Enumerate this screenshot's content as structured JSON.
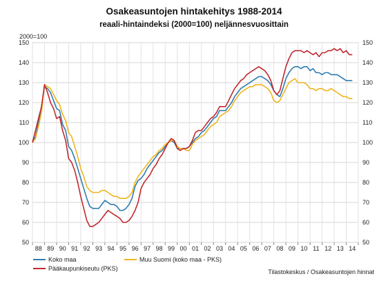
{
  "chart_data": {
    "type": "line",
    "title": "Osakeasuntojen hintakehitys 1988-2014",
    "subtitle": "reaali-hintaindeksi (2000=100) neljännesvuosittain",
    "ylabel": "2000=100",
    "source": "Tilastokeskus / Osakeasuntojen hinnat",
    "ylim": [
      50,
      150
    ],
    "y_ticks": [
      50,
      60,
      70,
      80,
      90,
      100,
      110,
      120,
      130,
      140,
      150
    ],
    "x_range": [
      1988.0,
      2015.0
    ],
    "x_tick_labels": [
      "88",
      "89",
      "90",
      "91",
      "92",
      "93",
      "94",
      "95",
      "96",
      "97",
      "98",
      "99",
      "00",
      "01",
      "02",
      "03",
      "04",
      "05",
      "06",
      "07",
      "08",
      "09",
      "10",
      "11",
      "12",
      "13",
      "14"
    ],
    "grid": true,
    "legend_position": "bottom",
    "series": [
      {
        "name": "Koko maa",
        "color": "#2e7bb0",
        "x": [
          1988.0,
          1988.25,
          1988.5,
          1988.75,
          1989.0,
          1989.25,
          1989.5,
          1989.75,
          1990.0,
          1990.25,
          1990.5,
          1990.75,
          1991.0,
          1991.25,
          1991.5,
          1991.75,
          1992.0,
          1992.25,
          1992.5,
          1992.75,
          1993.0,
          1993.25,
          1993.5,
          1993.75,
          1994.0,
          1994.25,
          1994.5,
          1994.75,
          1995.0,
          1995.25,
          1995.5,
          1995.75,
          1996.0,
          1996.25,
          1996.5,
          1996.75,
          1997.0,
          1997.25,
          1997.5,
          1997.75,
          1998.0,
          1998.25,
          1998.5,
          1998.75,
          1999.0,
          1999.25,
          1999.5,
          1999.75,
          2000.0,
          2000.25,
          2000.5,
          2000.75,
          2001.0,
          2001.25,
          2001.5,
          2001.75,
          2002.0,
          2002.25,
          2002.5,
          2002.75,
          2003.0,
          2003.25,
          2003.5,
          2003.75,
          2004.0,
          2004.25,
          2004.5,
          2004.75,
          2005.0,
          2005.25,
          2005.5,
          2005.75,
          2006.0,
          2006.25,
          2006.5,
          2006.75,
          2007.0,
          2007.25,
          2007.5,
          2007.75,
          2008.0,
          2008.25,
          2008.5,
          2008.75,
          2009.0,
          2009.25,
          2009.5,
          2009.75,
          2010.0,
          2010.25,
          2010.5,
          2010.75,
          2011.0,
          2011.25,
          2011.5,
          2011.75,
          2012.0,
          2012.25,
          2012.5,
          2012.75,
          2013.0,
          2013.25,
          2013.5,
          2013.75,
          2014.0,
          2014.25,
          2014.5
        ],
        "y": [
          100,
          103,
          110,
          118,
          128,
          127,
          125,
          121,
          117,
          116,
          109,
          106,
          98,
          96,
          92,
          87,
          82,
          77,
          72,
          68,
          67,
          67,
          67,
          69,
          71,
          70,
          69,
          69,
          68,
          66,
          66,
          67,
          69,
          72,
          78,
          81,
          82,
          84,
          87,
          89,
          91,
          93,
          95,
          96,
          98,
          100,
          101,
          100,
          97,
          97,
          97,
          97,
          98,
          100,
          102,
          103,
          105,
          106,
          108,
          110,
          112,
          113,
          116,
          116,
          116,
          118,
          120,
          123,
          125,
          127,
          128,
          129,
          130,
          131,
          132,
          133,
          133,
          132,
          131,
          129,
          126,
          124,
          123,
          127,
          132,
          135,
          137,
          138,
          138,
          137,
          138,
          138,
          136,
          137,
          135,
          135,
          134,
          135,
          135,
          134,
          134,
          134,
          133,
          132,
          131,
          131,
          131
        ]
      },
      {
        "name": "Pääkaupunkiseutu (PKS)",
        "color": "#c0282e",
        "x": [
          1988.0,
          1988.25,
          1988.5,
          1988.75,
          1989.0,
          1989.25,
          1989.5,
          1989.75,
          1990.0,
          1990.25,
          1990.5,
          1990.75,
          1991.0,
          1991.25,
          1991.5,
          1991.75,
          1992.0,
          1992.25,
          1992.5,
          1992.75,
          1993.0,
          1993.25,
          1993.5,
          1993.75,
          1994.0,
          1994.25,
          1994.5,
          1994.75,
          1995.0,
          1995.25,
          1995.5,
          1995.75,
          1996.0,
          1996.25,
          1996.5,
          1996.75,
          1997.0,
          1997.25,
          1997.5,
          1997.75,
          1998.0,
          1998.25,
          1998.5,
          1998.75,
          1999.0,
          1999.25,
          1999.5,
          1999.75,
          2000.0,
          2000.25,
          2000.5,
          2000.75,
          2001.0,
          2001.25,
          2001.5,
          2001.75,
          2002.0,
          2002.25,
          2002.5,
          2002.75,
          2003.0,
          2003.25,
          2003.5,
          2003.75,
          2004.0,
          2004.25,
          2004.5,
          2004.75,
          2005.0,
          2005.25,
          2005.5,
          2005.75,
          2006.0,
          2006.25,
          2006.5,
          2006.75,
          2007.0,
          2007.25,
          2007.5,
          2007.75,
          2008.0,
          2008.25,
          2008.5,
          2008.75,
          2009.0,
          2009.25,
          2009.5,
          2009.75,
          2010.0,
          2010.25,
          2010.5,
          2010.75,
          2011.0,
          2011.25,
          2011.5,
          2011.75,
          2012.0,
          2012.25,
          2012.5,
          2012.75,
          2013.0,
          2013.25,
          2013.5,
          2013.75,
          2014.0,
          2014.25,
          2014.5
        ],
        "y": [
          100,
          106,
          112,
          118,
          129,
          125,
          120,
          117,
          112,
          113,
          106,
          101,
          92,
          90,
          86,
          80,
          73,
          67,
          61,
          58,
          58,
          59,
          60,
          62,
          64,
          66,
          65,
          64,
          63,
          62,
          60,
          60,
          61,
          63,
          66,
          70,
          77,
          80,
          82,
          84,
          87,
          89,
          92,
          94,
          97,
          100,
          102,
          101,
          97,
          96,
          97,
          97,
          98,
          101,
          105,
          106,
          106,
          108,
          110,
          112,
          113,
          115,
          118,
          118,
          118,
          121,
          124,
          127,
          129,
          131,
          132,
          134,
          135,
          136,
          137,
          138,
          137,
          136,
          134,
          131,
          126,
          124,
          126,
          132,
          138,
          142,
          145,
          146,
          146,
          146,
          145,
          146,
          145,
          144,
          145,
          143,
          145,
          145,
          146,
          146,
          147,
          146,
          147,
          145,
          146,
          144,
          144
        ]
      },
      {
        "name": "Muu Suomi (koko maa - PKS)",
        "color": "#f0b41c",
        "x": [
          1988.0,
          1988.25,
          1988.5,
          1988.75,
          1989.0,
          1989.25,
          1989.5,
          1989.75,
          1990.0,
          1990.25,
          1990.5,
          1990.75,
          1991.0,
          1991.25,
          1991.5,
          1991.75,
          1992.0,
          1992.25,
          1992.5,
          1992.75,
          1993.0,
          1993.25,
          1993.5,
          1993.75,
          1994.0,
          1994.25,
          1994.5,
          1994.75,
          1995.0,
          1995.25,
          1995.5,
          1995.75,
          1996.0,
          1996.25,
          1996.5,
          1996.75,
          1997.0,
          1997.25,
          1997.5,
          1997.75,
          1998.0,
          1998.25,
          1998.5,
          1998.75,
          1999.0,
          1999.25,
          1999.5,
          1999.75,
          2000.0,
          2000.25,
          2000.5,
          2000.75,
          2001.0,
          2001.25,
          2001.5,
          2001.75,
          2002.0,
          2002.25,
          2002.5,
          2002.75,
          2003.0,
          2003.25,
          2003.5,
          2003.75,
          2004.0,
          2004.25,
          2004.5,
          2004.75,
          2005.0,
          2005.25,
          2005.5,
          2005.75,
          2006.0,
          2006.25,
          2006.5,
          2006.75,
          2007.0,
          2007.25,
          2007.5,
          2007.75,
          2008.0,
          2008.25,
          2008.5,
          2008.75,
          2009.0,
          2009.25,
          2009.5,
          2009.75,
          2010.0,
          2010.25,
          2010.5,
          2010.75,
          2011.0,
          2011.25,
          2011.5,
          2011.75,
          2012.0,
          2012.25,
          2012.5,
          2012.75,
          2013.0,
          2013.25,
          2013.5,
          2013.75,
          2014.0,
          2014.25,
          2014.5
        ],
        "y": [
          100,
          102,
          108,
          115,
          129,
          128,
          127,
          124,
          121,
          119,
          114,
          111,
          105,
          103,
          98,
          93,
          87,
          83,
          78,
          76,
          75,
          75,
          75,
          76,
          76,
          75,
          74,
          73,
          73,
          72,
          72,
          72,
          73,
          75,
          80,
          83,
          85,
          87,
          89,
          91,
          93,
          94,
          96,
          97,
          99,
          100,
          101,
          101,
          98,
          97,
          97,
          96,
          96,
          99,
          101,
          102,
          103,
          104,
          106,
          108,
          109,
          110,
          113,
          114,
          115,
          116,
          118,
          121,
          123,
          125,
          126,
          127,
          128,
          128,
          129,
          129,
          129,
          128,
          127,
          125,
          121,
          120,
          121,
          124,
          127,
          130,
          131,
          132,
          130,
          130,
          130,
          129,
          127,
          127,
          126,
          127,
          127,
          126,
          126,
          127,
          126,
          125,
          124,
          123,
          123,
          122,
          122
        ]
      }
    ]
  }
}
